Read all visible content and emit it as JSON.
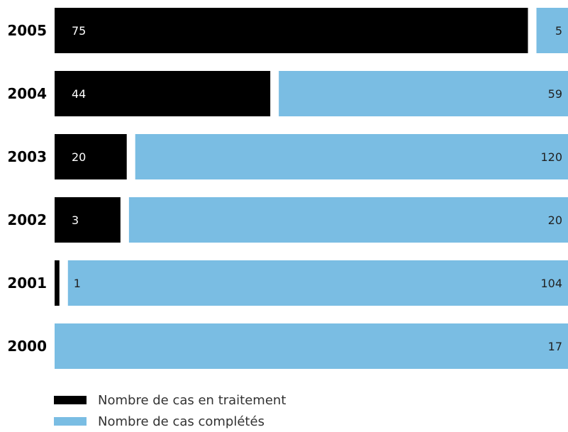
{
  "colors": {
    "in_progress": "#000000",
    "completed": "#7abde3",
    "label_on_dark": "#ffffff",
    "label_on_light": "#222222"
  },
  "chart_data": {
    "type": "bar",
    "orientation": "horizontal",
    "stacked": true,
    "normalized_per_row": false,
    "categories": [
      "2005",
      "2004",
      "2003",
      "2002",
      "2001",
      "2000"
    ],
    "series": [
      {
        "name": "Nombre de cas en traitement",
        "values": [
          75,
          44,
          20,
          3,
          1,
          0
        ],
        "color": "#000000"
      },
      {
        "name": "Nombre de cas complétés",
        "values": [
          5,
          59,
          120,
          20,
          104,
          17
        ],
        "color": "#7abde3"
      }
    ],
    "legend_position": "bottom-left",
    "grid": false
  },
  "legend": {
    "items": [
      {
        "label": "Nombre de cas en traitement"
      },
      {
        "label": "Nombre de cas complétés"
      }
    ]
  }
}
